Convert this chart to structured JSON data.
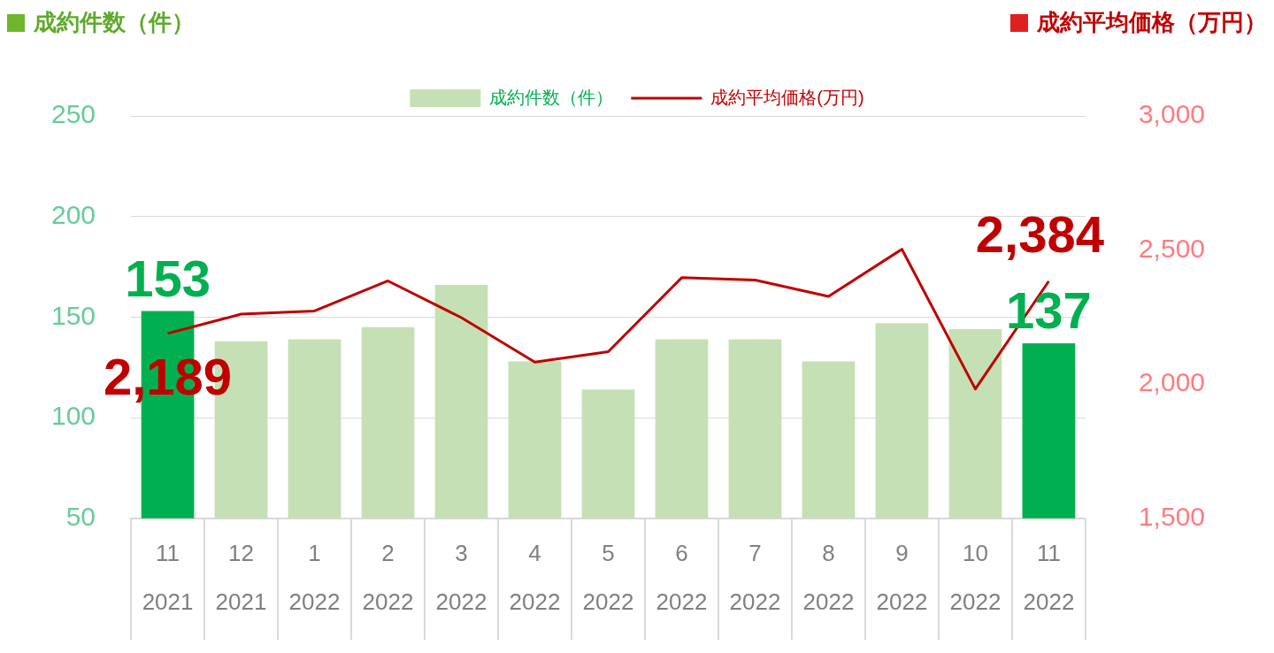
{
  "chart_data": {
    "type": "bar",
    "ylabel": "成約件数（件）",
    "y2label": "成約平均価格（万円）",
    "categories": [
      "11\n2021",
      "12\n2021",
      "1\n2022",
      "2\n2022",
      "3\n2022",
      "4\n2022",
      "5\n2022",
      "6\n2022",
      "7\n2022",
      "8\n2022",
      "9\n2022",
      "10\n2022",
      "11\n2022"
    ],
    "series": [
      {
        "name": "成約件数（件）",
        "color": "#c5e0b4",
        "colors": [
          "#00b050",
          "#c5e0b4",
          "#c5e0b4",
          "#c5e0b4",
          "#c5e0b4",
          "#c5e0b4",
          "#c5e0b4",
          "#c5e0b4",
          "#c5e0b4",
          "#c5e0b4",
          "#c5e0b4",
          "#c5e0b4",
          "#00b050"
        ],
        "values": [
          153,
          138,
          139,
          145,
          166,
          128,
          114,
          139,
          139,
          128,
          147,
          144,
          137
        ],
        "value_labels": [
          "153",
          null,
          null,
          null,
          null,
          null,
          null,
          null,
          null,
          null,
          null,
          null,
          "137"
        ]
      },
      {
        "name": "成約平均価格(万円)",
        "type": "line",
        "axis": "y2",
        "color": "#c00000",
        "values": [
          2189,
          2261,
          2273,
          2385,
          2248,
          2082,
          2121,
          2397,
          2388,
          2327,
          2503,
          1982,
          2384
        ],
        "value_labels": [
          "2,189",
          null,
          null,
          null,
          null,
          null,
          null,
          null,
          null,
          null,
          null,
          null,
          "2,384"
        ]
      }
    ],
    "ylim": [
      50,
      250
    ],
    "yticks": [
      50,
      100,
      150,
      200,
      250
    ],
    "y2lim": [
      1500,
      3000
    ],
    "y2ticks": [
      {
        "value": 1500,
        "label": "1,500"
      },
      {
        "value": 2000,
        "label": "2,000"
      },
      {
        "value": 2500,
        "label": "2,500"
      },
      {
        "value": 3000,
        "label": "3,000"
      }
    ],
    "grid": "y",
    "legend": "top",
    "marker": "none",
    "line_style": "solid"
  }
}
